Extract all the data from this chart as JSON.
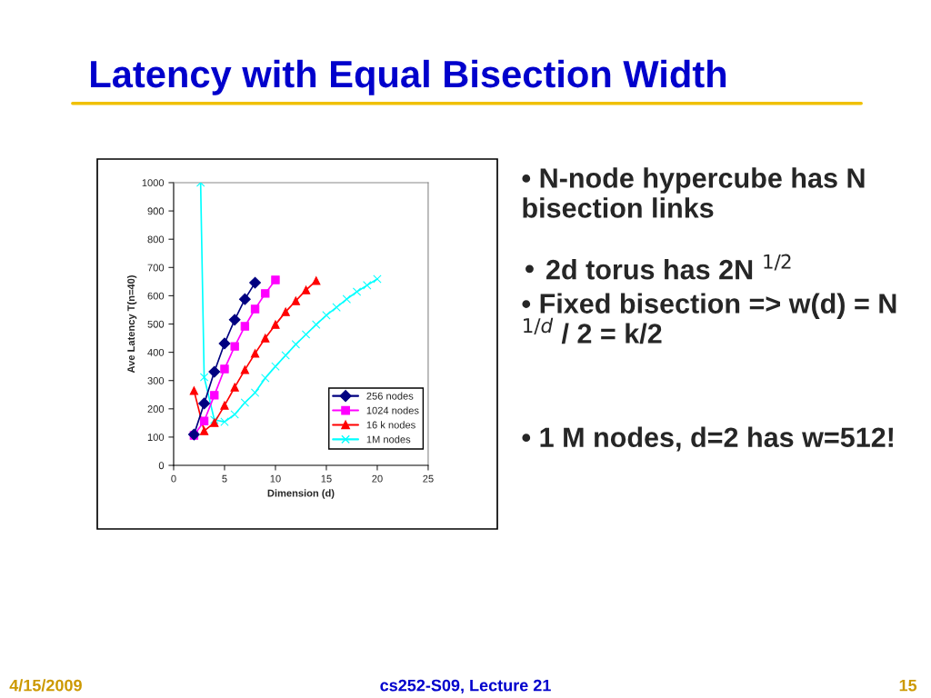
{
  "chart_data": [
    {
      "type": "line",
      "title": "Latency with Equal Bisection Width",
      "xlabel": "Dimension (d)",
      "ylabel": "Ave Latency T(n=40)",
      "xlim": [
        0,
        25
      ],
      "xticks": [
        0,
        5,
        10,
        15,
        20,
        25
      ],
      "ylim": [
        0,
        1000
      ],
      "yticks": [
        0,
        100,
        200,
        300,
        400,
        500,
        600,
        700,
        800,
        900,
        1000
      ],
      "grid": false,
      "legend": "bottom right",
      "series": [
        {
          "name": "256 nodes",
          "color": "#000080",
          "marker": "diamond",
          "x": [
            2,
            3,
            4,
            5,
            6,
            7,
            8
          ],
          "values": [
            109,
            219,
            331,
            431,
            515,
            588,
            646
          ]
        },
        {
          "name": "1024 nodes",
          "color": "#ff00ff",
          "marker": "square",
          "x": [
            2,
            3,
            4,
            5,
            6,
            7,
            8,
            9,
            10
          ],
          "values": [
            106,
            157,
            248,
            341,
            421,
            492,
            553,
            608,
            656
          ]
        },
        {
          "name": "16 k nodes",
          "color": "#ff0000",
          "marker": "triangle",
          "x": [
            2,
            3,
            4,
            5,
            6,
            7,
            8,
            9,
            10,
            11,
            12,
            13,
            14
          ],
          "values": [
            264,
            122,
            151,
            212,
            276,
            338,
            396,
            450,
            498,
            543,
            582,
            620,
            653
          ]
        },
        {
          "name": "1M nodes",
          "color": "#00ffff",
          "marker": "cross",
          "x": [
            2.65,
            3,
            4,
            5,
            6,
            7,
            8,
            9,
            10,
            11,
            12,
            13,
            14,
            15,
            16,
            17,
            18,
            19,
            20
          ],
          "values": [
            1000,
            312,
            161,
            154,
            180,
            222,
            257,
            309,
            350,
            389,
            428,
            463,
            498,
            531,
            559,
            588,
            614,
            637,
            659
          ]
        }
      ],
      "annotations": [
        "4/15/2009",
        "cs252-S09, Lecture 21",
        "15"
      ]
    },
    {
      "type": "other",
      "annotations": [
        "• N-node hypercube has N bisection links",
        "• 2d torus has 2N $^{1/2}$",
        "• Fixed bisection => w(d) = N $^{1/d}$ / 2 = k/2",
        "• 1 M nodes, d=2 has w=512!"
      ]
    }
  ]
}
